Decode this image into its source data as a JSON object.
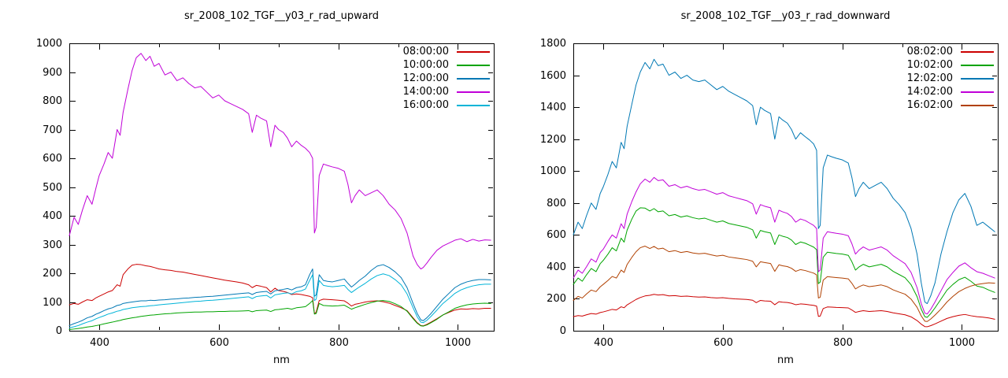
{
  "page": {
    "background": "#ffffff"
  },
  "chart_data": [
    {
      "type": "line",
      "title": "sr_2008_102_TGF__y03_r_rad_upward",
      "xlabel": "nm",
      "legend_position": "top-right",
      "grid": false,
      "x_range": [
        350,
        1060
      ],
      "y_range": [
        0,
        1000
      ],
      "x_ticks": [
        400,
        600,
        800,
        1000
      ],
      "x_minor_ticks": [
        500,
        700,
        900
      ],
      "y_ticks": [
        0,
        100,
        200,
        300,
        400,
        500,
        600,
        700,
        800,
        900,
        1000
      ],
      "x": [
        350,
        358,
        365,
        372,
        380,
        388,
        395,
        400,
        408,
        415,
        422,
        430,
        435,
        440,
        448,
        455,
        462,
        470,
        478,
        485,
        492,
        500,
        510,
        520,
        530,
        540,
        550,
        560,
        570,
        580,
        590,
        600,
        610,
        620,
        630,
        640,
        650,
        656,
        663,
        670,
        680,
        687,
        694,
        700,
        708,
        715,
        722,
        730,
        738,
        745,
        752,
        757,
        760,
        763,
        768,
        775,
        782,
        790,
        800,
        810,
        816,
        822,
        828,
        835,
        845,
        855,
        865,
        875,
        885,
        895,
        905,
        915,
        925,
        932,
        938,
        942,
        948,
        955,
        965,
        975,
        985,
        995,
        1005,
        1015,
        1025,
        1035,
        1045,
        1055
      ],
      "series": [
        {
          "name": "08:00:00",
          "color": "#cc0000",
          "values": [
            90,
            95,
            92,
            100,
            108,
            105,
            115,
            120,
            128,
            135,
            140,
            160,
            155,
            195,
            215,
            228,
            231,
            230,
            226,
            224,
            220,
            215,
            212,
            210,
            206,
            204,
            200,
            196,
            192,
            188,
            184,
            180,
            176,
            173,
            170,
            166,
            160,
            150,
            158,
            155,
            150,
            135,
            148,
            140,
            137,
            133,
            126,
            128,
            126,
            123,
            120,
            115,
            60,
            65,
            105,
            110,
            109,
            108,
            106,
            104,
            96,
            86,
            92,
            95,
            100,
            103,
            104,
            101,
            96,
            88,
            80,
            70,
            45,
            28,
            18,
            17,
            22,
            30,
            42,
            55,
            64,
            72,
            76,
            75,
            77,
            76,
            78,
            78
          ]
        },
        {
          "name": "10:00:00",
          "color": "#00a400",
          "values": [
            4,
            6,
            8,
            10,
            13,
            15,
            18,
            20,
            24,
            27,
            30,
            34,
            36,
            39,
            42,
            45,
            47,
            50,
            52,
            54,
            55,
            57,
            59,
            60,
            62,
            63,
            64,
            65,
            65,
            66,
            66,
            67,
            67,
            68,
            68,
            69,
            70,
            66,
            70,
            71,
            72,
            67,
            73,
            74,
            76,
            78,
            75,
            80,
            82,
            84,
            95,
            105,
            58,
            60,
            95,
            88,
            87,
            86,
            87,
            89,
            82,
            75,
            80,
            85,
            92,
            98,
            103,
            105,
            102,
            94,
            84,
            68,
            42,
            26,
            17,
            16,
            20,
            28,
            40,
            55,
            66,
            78,
            85,
            90,
            93,
            95,
            96,
            95
          ]
        },
        {
          "name": "12:00:00",
          "color": "#0078b4",
          "values": [
            18,
            25,
            30,
            36,
            45,
            50,
            58,
            62,
            70,
            76,
            80,
            88,
            90,
            95,
            98,
            100,
            102,
            104,
            104,
            106,
            105,
            107,
            108,
            110,
            111,
            113,
            114,
            116,
            117,
            119,
            120,
            122,
            124,
            126,
            128,
            130,
            132,
            126,
            133,
            135,
            137,
            128,
            139,
            141,
            144,
            147,
            142,
            150,
            153,
            160,
            195,
            215,
            120,
            125,
            195,
            175,
            172,
            170,
            175,
            180,
            165,
            152,
            162,
            175,
            190,
            210,
            225,
            230,
            220,
            205,
            185,
            150,
            95,
            60,
            38,
            35,
            45,
            60,
            85,
            110,
            130,
            150,
            162,
            170,
            175,
            178,
            178,
            177
          ]
        },
        {
          "name": "14:00:00",
          "color": "#c000d8",
          "values": [
            330,
            395,
            370,
            420,
            470,
            440,
            500,
            540,
            580,
            620,
            600,
            700,
            680,
            760,
            840,
            905,
            950,
            965,
            940,
            955,
            920,
            930,
            890,
            900,
            870,
            880,
            860,
            845,
            850,
            830,
            810,
            820,
            800,
            790,
            780,
            770,
            755,
            690,
            750,
            740,
            730,
            640,
            715,
            700,
            690,
            670,
            640,
            660,
            645,
            635,
            620,
            600,
            340,
            360,
            540,
            580,
            575,
            570,
            565,
            555,
            510,
            445,
            470,
            490,
            470,
            480,
            490,
            470,
            440,
            420,
            390,
            340,
            260,
            230,
            215,
            220,
            235,
            255,
            280,
            295,
            305,
            315,
            320,
            310,
            318,
            312,
            316,
            315
          ]
        },
        {
          "name": "16:00:00",
          "color": "#00b4d8",
          "values": [
            10,
            14,
            18,
            24,
            30,
            35,
            42,
            46,
            52,
            58,
            62,
            68,
            70,
            74,
            77,
            80,
            82,
            84,
            85,
            87,
            88,
            90,
            92,
            94,
            96,
            98,
            100,
            102,
            103,
            105,
            106,
            108,
            110,
            112,
            114,
            116,
            118,
            112,
            119,
            121,
            123,
            114,
            125,
            127,
            130,
            132,
            128,
            136,
            139,
            145,
            175,
            195,
            105,
            110,
            175,
            158,
            155,
            153,
            155,
            158,
            144,
            133,
            142,
            152,
            165,
            180,
            192,
            198,
            192,
            178,
            160,
            128,
            80,
            48,
            30,
            28,
            36,
            50,
            72,
            95,
            112,
            130,
            142,
            150,
            156,
            160,
            162,
            162
          ]
        }
      ]
    },
    {
      "type": "line",
      "title": "sr_2008_102_TGF__y03_r_rad_downward",
      "xlabel": "nm",
      "legend_position": "top-right",
      "grid": false,
      "x_range": [
        350,
        1060
      ],
      "y_range": [
        0,
        1800
      ],
      "x_ticks": [
        400,
        600,
        800,
        1000
      ],
      "x_minor_ticks": [
        500,
        700,
        900
      ],
      "y_ticks": [
        0,
        200,
        400,
        600,
        800,
        1000,
        1200,
        1400,
        1600,
        1800
      ],
      "x": [
        350,
        358,
        365,
        372,
        380,
        388,
        395,
        400,
        408,
        415,
        422,
        430,
        435,
        440,
        448,
        455,
        462,
        470,
        478,
        485,
        492,
        500,
        510,
        520,
        530,
        540,
        550,
        560,
        570,
        580,
        590,
        600,
        610,
        620,
        630,
        640,
        650,
        656,
        663,
        670,
        680,
        687,
        694,
        700,
        708,
        715,
        722,
        730,
        738,
        745,
        752,
        757,
        760,
        763,
        768,
        775,
        782,
        790,
        800,
        810,
        816,
        822,
        828,
        835,
        845,
        855,
        865,
        875,
        885,
        895,
        905,
        915,
        925,
        932,
        938,
        942,
        948,
        955,
        965,
        975,
        985,
        995,
        1005,
        1015,
        1025,
        1035,
        1045,
        1055
      ],
      "series": [
        {
          "name": "08:02:00",
          "color": "#cc0000",
          "values": [
            88,
            95,
            92,
            100,
            108,
            104,
            114,
            118,
            126,
            134,
            130,
            150,
            144,
            162,
            180,
            196,
            208,
            218,
            222,
            228,
            224,
            226,
            218,
            220,
            215,
            217,
            213,
            211,
            212,
            208,
            205,
            207,
            203,
            200,
            198,
            196,
            191,
            176,
            190,
            187,
            185,
            163,
            182,
            179,
            177,
            172,
            163,
            168,
            166,
            162,
            159,
            154,
            90,
            92,
            139,
            149,
            148,
            146,
            145,
            143,
            130,
            115,
            121,
            126,
            121,
            123,
            126,
            121,
            112,
            106,
            100,
            87,
            64,
            41,
            26,
            25,
            32,
            43,
            60,
            77,
            88,
            97,
            102,
            94,
            88,
            85,
            80,
            72
          ]
        },
        {
          "name": "10:02:00",
          "color": "#00a400",
          "values": [
            290,
            330,
            310,
            350,
            390,
            370,
            420,
            440,
            480,
            520,
            500,
            580,
            555,
            630,
            700,
            750,
            770,
            768,
            750,
            765,
            745,
            750,
            720,
            728,
            712,
            720,
            708,
            700,
            705,
            692,
            680,
            688,
            672,
            664,
            656,
            648,
            632,
            580,
            628,
            620,
            612,
            540,
            600,
            592,
            584,
            568,
            540,
            556,
            548,
            536,
            524,
            508,
            295,
            305,
            460,
            492,
            488,
            484,
            480,
            472,
            432,
            380,
            400,
            416,
            400,
            408,
            416,
            400,
            372,
            352,
            332,
            288,
            214,
            135,
            88,
            84,
            108,
            143,
            198,
            254,
            290,
            320,
            335,
            310,
            280,
            272,
            255,
            240
          ]
        },
        {
          "name": "12:02:00",
          "color": "#0078b4",
          "values": [
            600,
            680,
            640,
            720,
            800,
            760,
            860,
            900,
            980,
            1060,
            1020,
            1180,
            1140,
            1280,
            1420,
            1540,
            1620,
            1680,
            1640,
            1700,
            1660,
            1670,
            1600,
            1620,
            1580,
            1600,
            1570,
            1560,
            1570,
            1540,
            1510,
            1530,
            1500,
            1480,
            1460,
            1440,
            1410,
            1290,
            1400,
            1380,
            1360,
            1200,
            1340,
            1320,
            1300,
            1260,
            1200,
            1240,
            1215,
            1195,
            1170,
            1130,
            640,
            660,
            1020,
            1100,
            1090,
            1080,
            1070,
            1050,
            960,
            840,
            890,
            930,
            890,
            910,
            930,
            890,
            830,
            790,
            740,
            640,
            480,
            300,
            180,
            170,
            220,
            300,
            480,
            620,
            740,
            820,
            860,
            780,
            660,
            680,
            650,
            620
          ]
        },
        {
          "name": "14:02:00",
          "color": "#c000d8",
          "values": [
            330,
            380,
            360,
            400,
            450,
            430,
            490,
            510,
            560,
            600,
            580,
            670,
            640,
            730,
            810,
            870,
            920,
            950,
            930,
            960,
            940,
            945,
            905,
            915,
            895,
            905,
            890,
            880,
            885,
            870,
            855,
            865,
            845,
            835,
            825,
            815,
            795,
            730,
            790,
            780,
            770,
            680,
            755,
            745,
            735,
            715,
            680,
            700,
            690,
            675,
            660,
            640,
            370,
            380,
            580,
            620,
            615,
            610,
            605,
            595,
            545,
            480,
            505,
            525,
            505,
            515,
            525,
            505,
            470,
            445,
            420,
            365,
            270,
            170,
            110,
            105,
            135,
            180,
            250,
            320,
            365,
            405,
            425,
            395,
            370,
            360,
            345,
            330
          ]
        },
        {
          "name": "16:02:00",
          "color": "#b04000",
          "values": [
            190,
            215,
            205,
            230,
            255,
            245,
            275,
            290,
            315,
            340,
            330,
            380,
            365,
            415,
            460,
            495,
            520,
            530,
            515,
            528,
            512,
            517,
            495,
            502,
            490,
            496,
            487,
            482,
            485,
            476,
            468,
            473,
            462,
            457,
            451,
            446,
            435,
            400,
            432,
            427,
            421,
            372,
            413,
            407,
            402,
            391,
            372,
            383,
            377,
            369,
            361,
            350,
            205,
            210,
            317,
            339,
            336,
            333,
            330,
            325,
            297,
            262,
            276,
            287,
            276,
            281,
            287,
            276,
            256,
            242,
            229,
            198,
            147,
            93,
            60,
            58,
            74,
            98,
            136,
            180,
            215,
            245,
            265,
            280,
            290,
            295,
            300,
            298
          ]
        }
      ]
    }
  ]
}
